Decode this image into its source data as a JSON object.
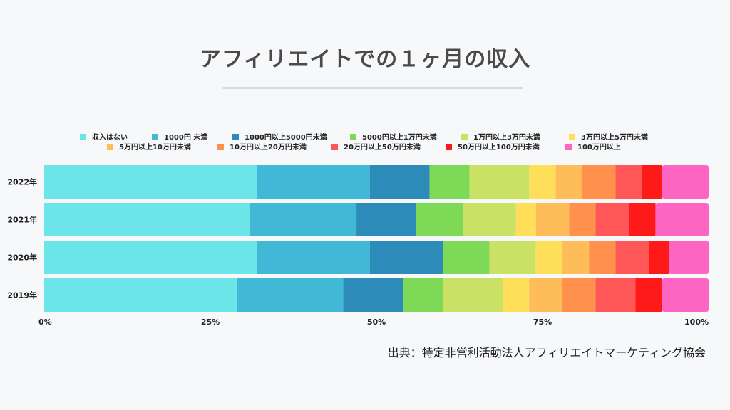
{
  "title": "アフィリエイトでの１ヶ月の収入",
  "source": "出典：特定非営利活動法人アフィリエイトマーケティング協会",
  "chart_data": {
    "type": "bar",
    "orientation": "horizontal",
    "stacked": true,
    "normalized": true,
    "categories": [
      "2022年",
      "2021年",
      "2020年",
      "2019年"
    ],
    "x_ticks": [
      "0%",
      "25%",
      "50%",
      "75%",
      "100%"
    ],
    "xlim": [
      0,
      100
    ],
    "legend_position": "top",
    "series": [
      {
        "name": "収入はない",
        "color": "#6ce5e8",
        "values": [
          32,
          31,
          32,
          29
        ]
      },
      {
        "name": "1000円 未満",
        "color": "#41b8d5",
        "values": [
          17,
          16,
          17,
          16
        ]
      },
      {
        "name": "1000円以上5000円未満",
        "color": "#2d8bba",
        "values": [
          9,
          9,
          11,
          9
        ]
      },
      {
        "name": "5000円以上1万円未満",
        "color": "#7ed957",
        "values": [
          6,
          7,
          7,
          6
        ]
      },
      {
        "name": "1万円以上3万円未満",
        "color": "#c9e265",
        "values": [
          9,
          8,
          7,
          9
        ]
      },
      {
        "name": "3万円以上5万円未満",
        "color": "#ffde59",
        "values": [
          4,
          3,
          4,
          4
        ]
      },
      {
        "name": "5万円以上10万円未満",
        "color": "#ffbd59",
        "values": [
          4,
          5,
          4,
          5
        ]
      },
      {
        "name": "10万円以上20万円未満",
        "color": "#ff914d",
        "values": [
          5,
          4,
          4,
          5
        ]
      },
      {
        "name": "20万円以上50万円未満",
        "color": "#ff5757",
        "values": [
          4,
          5,
          5,
          6
        ]
      },
      {
        "name": "50万円以上100万円未満",
        "color": "#ff1a1a",
        "values": [
          3,
          4,
          3,
          4
        ]
      },
      {
        "name": "100万円以上",
        "color": "#ff66c4",
        "values": [
          7,
          8,
          6,
          7
        ]
      }
    ]
  }
}
